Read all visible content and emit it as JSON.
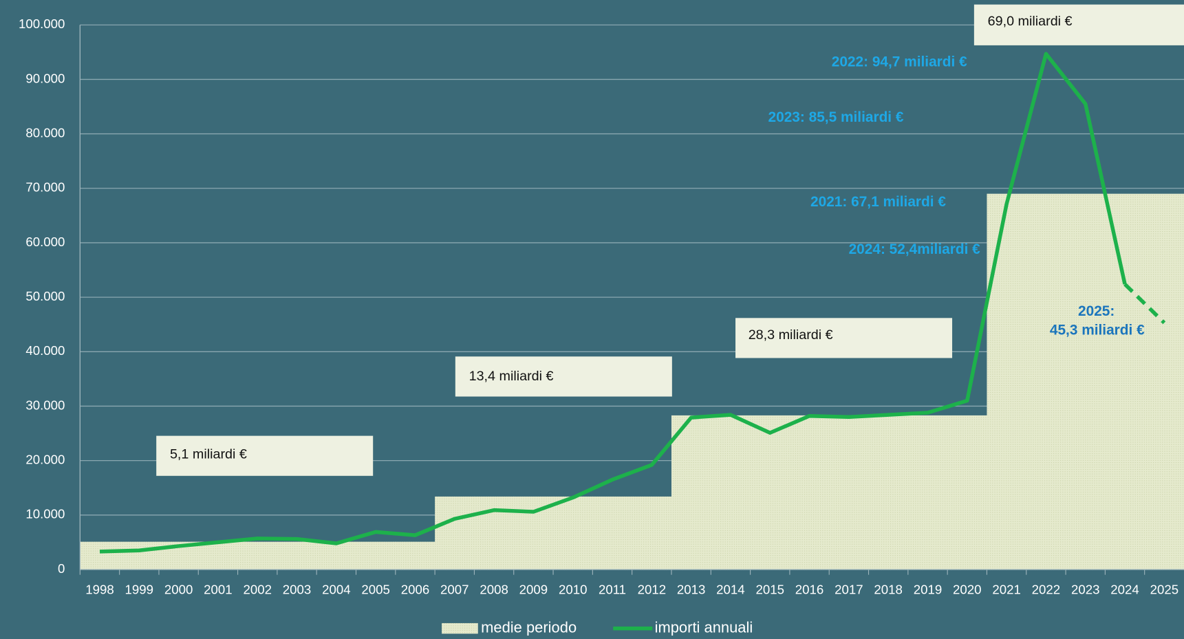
{
  "chart_data": {
    "type": "line",
    "categories": [
      "1998",
      "1999",
      "2000",
      "2001",
      "2002",
      "2003",
      "2004",
      "2005",
      "2006",
      "2007",
      "2008",
      "2009",
      "2010",
      "2011",
      "2012",
      "2013",
      "2014",
      "2015",
      "2016",
      "2017",
      "2018",
      "2019",
      "2020",
      "2021",
      "2022",
      "2023",
      "2024",
      "2025"
    ],
    "series": [
      {
        "name": "medie periodo",
        "type": "area",
        "color": "#e5eacd",
        "values": [
          5100,
          5100,
          5100,
          5100,
          5100,
          5100,
          5100,
          5100,
          5100,
          13400,
          13400,
          13400,
          13400,
          13400,
          13400,
          28300,
          28300,
          28300,
          28300,
          28300,
          28300,
          28300,
          28300,
          69000,
          69000,
          69000,
          69000,
          69000
        ]
      },
      {
        "name": "importi annuali",
        "type": "line",
        "color": "#1db14b",
        "values": [
          3300,
          3500,
          4300,
          5000,
          5700,
          5600,
          4800,
          6900,
          6300,
          9300,
          10900,
          10600,
          13200,
          16500,
          19200,
          27900,
          28400,
          25100,
          28200,
          28000,
          28400,
          28800,
          31000,
          67100,
          94700,
          85500,
          52400,
          45300
        ],
        "dashed": [
          false,
          false,
          false,
          false,
          false,
          false,
          false,
          false,
          false,
          false,
          false,
          false,
          false,
          false,
          false,
          false,
          false,
          false,
          false,
          false,
          false,
          false,
          false,
          false,
          false,
          false,
          false,
          true
        ]
      }
    ],
    "ylim": [
      0,
      100000
    ],
    "yticks": [
      0,
      {
        "value": 10000,
        "label": "10.000"
      },
      {
        "value": 20000,
        "label": "20.000"
      },
      {
        "value": 30000,
        "label": "30.000"
      },
      {
        "value": 40000,
        "label": "40.000"
      },
      {
        "value": 50000,
        "label": "50.000"
      },
      {
        "value": 60000,
        "label": "60.000"
      },
      {
        "value": 70000,
        "label": "70.000"
      },
      {
        "value": 80000,
        "label": "80.000"
      },
      {
        "value": 90000,
        "label": "90.000"
      },
      {
        "value": 100000,
        "label": "100.000"
      }
    ],
    "grid": true,
    "legend": "bottom",
    "annotations": [
      {
        "text": "5,1 miliardi €",
        "style": "box"
      },
      {
        "text": "13,4 miliardi €",
        "style": "box"
      },
      {
        "text": "28,3 miliardi €",
        "style": "box"
      },
      {
        "text": "69,0 miliardi €",
        "style": "box"
      },
      {
        "text": "2022: 94,7 miliardi €",
        "style": "label",
        "color": "#1ea8e6"
      },
      {
        "text": "2023: 85,5 miliardi €",
        "style": "label",
        "color": "#1ea8e6"
      },
      {
        "text": "2021: 67,1 miliardi €",
        "style": "label",
        "color": "#1ea8e6"
      },
      {
        "text": "2024: 52,4miliardi €",
        "style": "label",
        "color": "#1ea8e6"
      },
      {
        "text": "2025:",
        "style": "label",
        "color": "#1b75bc"
      },
      {
        "text": "45,3 miliardi €",
        "style": "label",
        "color": "#1b75bc"
      }
    ]
  }
}
